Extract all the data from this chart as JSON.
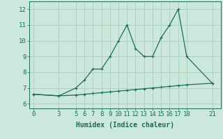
{
  "x_upper": [
    0,
    3,
    5,
    6,
    7,
    8,
    9,
    10,
    11,
    12,
    13,
    14,
    15,
    16,
    17,
    18,
    21
  ],
  "y_upper": [
    6.6,
    6.5,
    7.0,
    7.5,
    8.2,
    8.2,
    9.0,
    10.0,
    11.0,
    9.5,
    9.0,
    9.0,
    10.2,
    11.0,
    12.0,
    9.0,
    7.3
  ],
  "x_lower": [
    0,
    3,
    5,
    6,
    7,
    8,
    9,
    10,
    11,
    12,
    13,
    14,
    15,
    16,
    17,
    18,
    21
  ],
  "y_lower": [
    6.6,
    6.5,
    6.55,
    6.6,
    6.65,
    6.7,
    6.75,
    6.8,
    6.85,
    6.9,
    6.95,
    7.0,
    7.05,
    7.1,
    7.15,
    7.2,
    7.3
  ],
  "line_color": "#1a6b5a",
  "bg_color": "#cce8dc",
  "grid_color": "#aacfbf",
  "xlabel": "Humidex (Indice chaleur)",
  "xticks": [
    0,
    3,
    5,
    6,
    7,
    8,
    9,
    10,
    11,
    12,
    13,
    14,
    15,
    16,
    17,
    18,
    21
  ],
  "yticks": [
    6,
    7,
    8,
    9,
    10,
    11,
    12
  ],
  "ylim": [
    5.7,
    12.5
  ],
  "xlim": [
    -0.5,
    22.0
  ],
  "xlabel_fontsize": 7.0,
  "tick_fontsize": 6.5,
  "markersize": 3.0,
  "linewidth": 0.9
}
